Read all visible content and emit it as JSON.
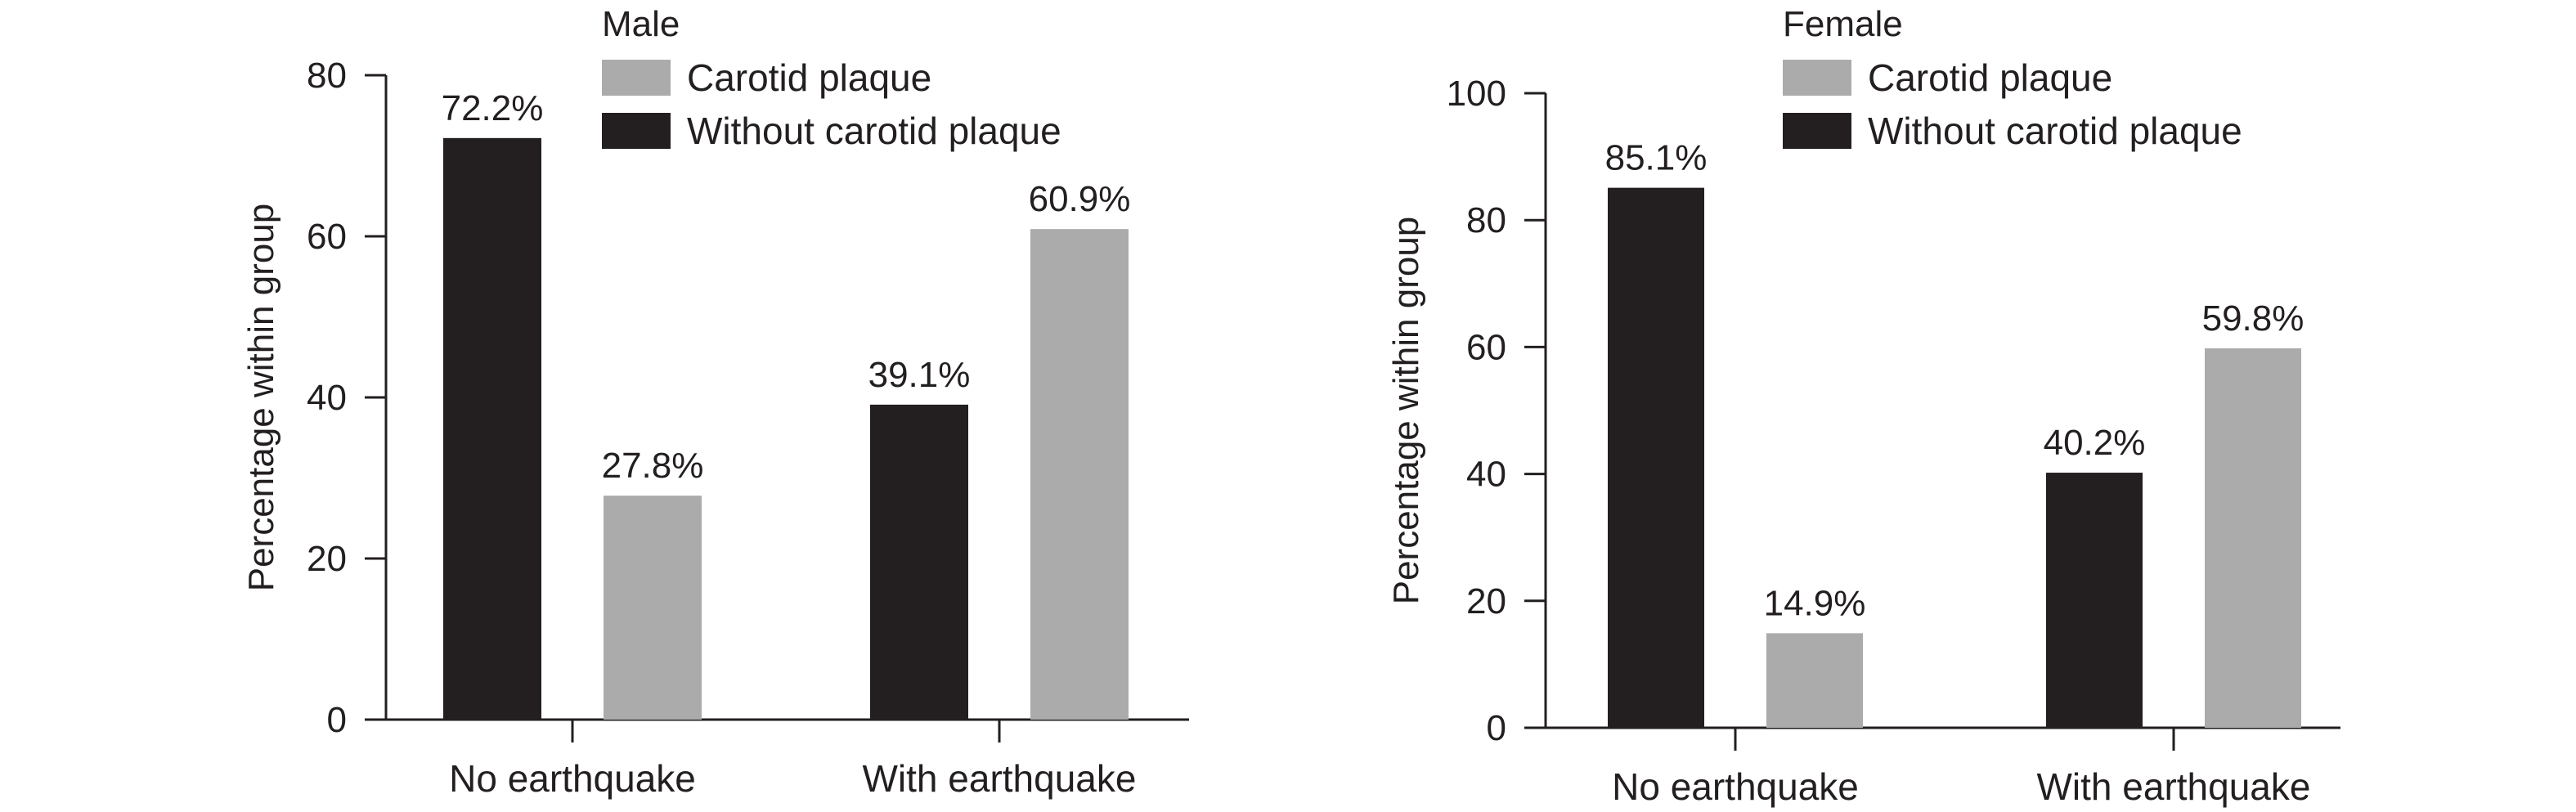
{
  "chart_data": [
    {
      "type": "bar",
      "title": "",
      "legend": {
        "title": "Male",
        "placement": "top-right",
        "entries": [
          {
            "label": "Carotid plaque",
            "color": "#acabab"
          },
          {
            "label": "Without carotid plaque",
            "color": "#231f20"
          }
        ]
      },
      "categories": [
        "No earthquake",
        "With earthquake"
      ],
      "series": [
        {
          "name": "Without carotid plaque",
          "values": [
            72.2,
            39.1
          ],
          "labels": [
            "72.2%",
            "39.1%"
          ],
          "color": "#231f20"
        },
        {
          "name": "Carotid plaque",
          "values": [
            27.8,
            60.9
          ],
          "labels": [
            "27.8%",
            "60.9%"
          ],
          "color": "#acabab"
        }
      ],
      "xlabel": "",
      "ylabel": "Percentage within group",
      "ylim": [
        0,
        80
      ],
      "yticks": [
        "0",
        "20",
        "40",
        "60",
        "80"
      ],
      "grid": false
    },
    {
      "type": "bar",
      "title": "",
      "legend": {
        "title": "Female",
        "placement": "top-right",
        "entries": [
          {
            "label": "Carotid plaque",
            "color": "#acabab"
          },
          {
            "label": "Without carotid plaque",
            "color": "#231f20"
          }
        ]
      },
      "categories": [
        "No earthquake",
        "With earthquake"
      ],
      "series": [
        {
          "name": "Without carotid plaque",
          "values": [
            85.1,
            40.2
          ],
          "labels": [
            "85.1%",
            "40.2%"
          ],
          "color": "#231f20"
        },
        {
          "name": "Carotid plaque",
          "values": [
            14.9,
            59.8
          ],
          "labels": [
            "14.9%",
            "59.8%"
          ],
          "color": "#acabab"
        }
      ],
      "xlabel": "",
      "ylabel": "Percentage within group",
      "ylim": [
        0,
        100
      ],
      "yticks": [
        "0",
        "20",
        "40",
        "60",
        "80",
        "100"
      ],
      "grid": false
    }
  ]
}
